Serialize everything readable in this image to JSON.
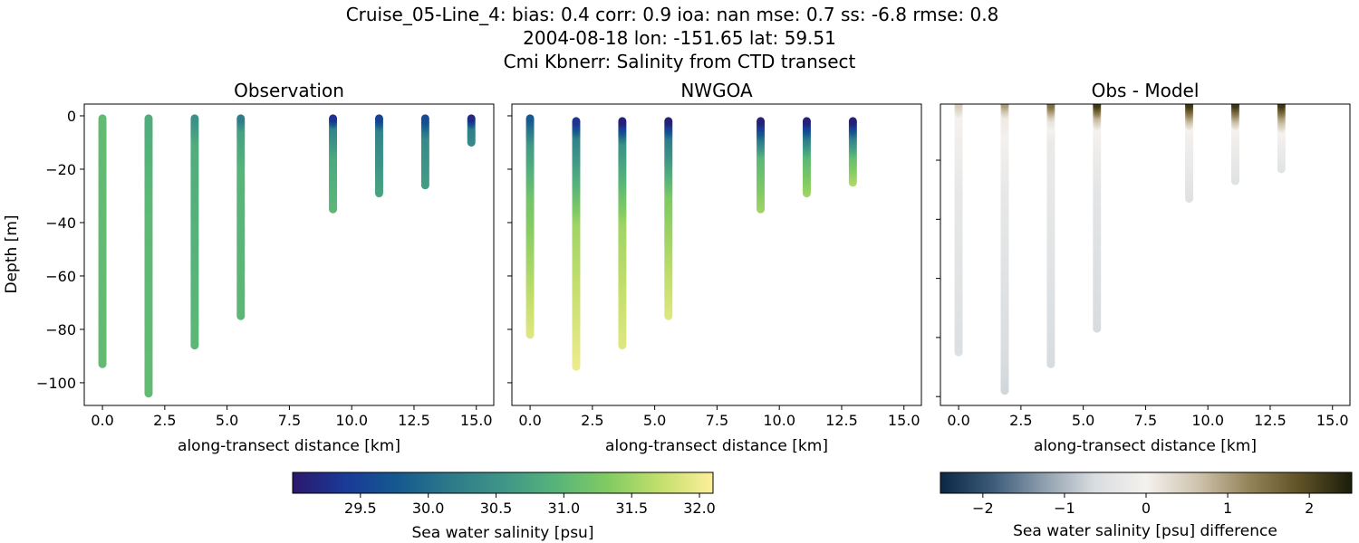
{
  "title_lines": [
    "Cruise_05-Line_4: bias: 0.4  corr: 0.9  ioa: nan  mse: 0.7  ss: -6.8  rmse: 0.8",
    "2004-08-18 lon: -151.65 lat: 59.51",
    "Cmi Kbnerr: Salinity from CTD transect"
  ],
  "chart_data": [
    {
      "type": "scatter",
      "title": "Observation",
      "xlabel": "along-transect distance [km]",
      "ylabel": "Depth [m]",
      "xlim": [
        -0.73,
        15.7
      ],
      "ylim": [
        -108.5,
        4.4
      ],
      "xticks": [
        "0.0",
        "2.5",
        "5.0",
        "7.5",
        "10.0",
        "12.5",
        "15.0"
      ],
      "yticks": [
        "0",
        "−20",
        "−40",
        "−60",
        "−80",
        "−100"
      ],
      "colormap": "haline",
      "casts": [
        {
          "x": 0.0,
          "profile": [
            [
              -1,
              31.05
            ],
            [
              -93,
              31.05
            ]
          ]
        },
        {
          "x": 1.85,
          "profile": [
            [
              -1,
              30.85
            ],
            [
              -30,
              31.0
            ],
            [
              -104,
              31.05
            ]
          ]
        },
        {
          "x": 3.7,
          "profile": [
            [
              -1,
              30.5
            ],
            [
              -10,
              30.85
            ],
            [
              -86,
              31.0
            ]
          ]
        },
        {
          "x": 5.55,
          "profile": [
            [
              -1,
              30.2
            ],
            [
              -5,
              30.7
            ],
            [
              -20,
              30.95
            ],
            [
              -75,
              31.0
            ]
          ]
        },
        {
          "x": 9.25,
          "profile": [
            [
              -1,
              29.3
            ],
            [
              -4,
              30.3
            ],
            [
              -15,
              30.8
            ],
            [
              -35,
              31.0
            ]
          ]
        },
        {
          "x": 11.1,
          "profile": [
            [
              -1,
              29.5
            ],
            [
              -5,
              30.3
            ],
            [
              -29,
              30.75
            ]
          ]
        },
        {
          "x": 12.95,
          "profile": [
            [
              -1,
              29.6
            ],
            [
              -8,
              30.4
            ],
            [
              -26,
              30.65
            ]
          ]
        },
        {
          "x": 14.8,
          "profile": [
            [
              -1,
              29.2
            ],
            [
              -4,
              30.2
            ],
            [
              -10,
              30.4
            ]
          ]
        }
      ]
    },
    {
      "type": "scatter",
      "title": "NWGOA",
      "xlabel": "along-transect distance [km]",
      "xlim": [
        -0.73,
        15.7
      ],
      "ylim": [
        -108.5,
        4.4
      ],
      "xticks": [
        "0.0",
        "2.5",
        "5.0",
        "7.5",
        "10.0",
        "12.5",
        "15.0"
      ],
      "colormap": "haline",
      "casts": [
        {
          "x": 0.0,
          "profile": [
            [
              -1,
              29.8
            ],
            [
              -10,
              30.6
            ],
            [
              -30,
              31.2
            ],
            [
              -60,
              31.6
            ],
            [
              -82,
              31.9
            ]
          ]
        },
        {
          "x": 1.85,
          "profile": [
            [
              -2,
              29.3
            ],
            [
              -8,
              30.3
            ],
            [
              -40,
              31.5
            ],
            [
              -94,
              32.0
            ]
          ]
        },
        {
          "x": 3.7,
          "profile": [
            [
              -2,
              29.1
            ],
            [
              -10,
              30.5
            ],
            [
              -40,
              31.5
            ],
            [
              -86,
              31.9
            ]
          ]
        },
        {
          "x": 5.55,
          "profile": [
            [
              -2,
              29.1
            ],
            [
              -8,
              30.2
            ],
            [
              -30,
              31.3
            ],
            [
              -75,
              31.9
            ]
          ]
        },
        {
          "x": 9.25,
          "profile": [
            [
              -2,
              29.1
            ],
            [
              -8,
              30.1
            ],
            [
              -15,
              31.0
            ],
            [
              -35,
              31.5
            ]
          ]
        },
        {
          "x": 11.1,
          "profile": [
            [
              -2,
              29.1
            ],
            [
              -8,
              30.2
            ],
            [
              -15,
              31.0
            ],
            [
              -29,
              31.5
            ]
          ]
        },
        {
          "x": 12.95,
          "profile": [
            [
              -2,
              29.1
            ],
            [
              -8,
              30.3
            ],
            [
              -15,
              31.1
            ],
            [
              -25,
              31.6
            ]
          ]
        }
      ]
    },
    {
      "type": "scatter",
      "title": "Obs - Model",
      "xlabel": "along-transect distance [km]",
      "xlim": [
        -0.73,
        15.7
      ],
      "ylim": [
        -103,
        -1
      ],
      "xticks": [
        "0.0",
        "2.5",
        "5.0",
        "7.5",
        "10.0",
        "12.5",
        "15.0"
      ],
      "colormap": "diff",
      "casts": [
        {
          "x": 0.0,
          "profile": [
            [
              -1,
              0.5
            ],
            [
              -5,
              0.0
            ],
            [
              -30,
              -0.3
            ],
            [
              -85,
              -0.55
            ]
          ]
        },
        {
          "x": 1.85,
          "profile": [
            [
              -1,
              1.0
            ],
            [
              -5,
              0.1
            ],
            [
              -30,
              -0.3
            ],
            [
              -98,
              -0.7
            ]
          ]
        },
        {
          "x": 3.7,
          "profile": [
            [
              -1,
              1.5
            ],
            [
              -6,
              0.2
            ],
            [
              -12,
              -0.2
            ],
            [
              -89,
              -0.65
            ]
          ]
        },
        {
          "x": 5.55,
          "profile": [
            [
              -1,
              2.2
            ],
            [
              -5,
              0.8
            ],
            [
              -9,
              0.0
            ],
            [
              -30,
              -0.4
            ],
            [
              -77,
              -0.65
            ]
          ]
        },
        {
          "x": 9.25,
          "profile": [
            [
              -1,
              2.2
            ],
            [
              -5,
              1.0
            ],
            [
              -9,
              0.0
            ],
            [
              -33,
              -0.5
            ]
          ]
        },
        {
          "x": 11.1,
          "profile": [
            [
              -1,
              2.2
            ],
            [
              -5,
              1.0
            ],
            [
              -9,
              0.0
            ],
            [
              -27,
              -0.5
            ]
          ]
        },
        {
          "x": 12.95,
          "profile": [
            [
              -1,
              2.2
            ],
            [
              -5,
              1.0
            ],
            [
              -10,
              0.0
            ],
            [
              -23,
              -0.45
            ]
          ]
        }
      ]
    }
  ],
  "colorbars": [
    {
      "label": "Sea water salinity [psu]",
      "range": [
        29.0,
        32.1
      ],
      "ticks": [
        "29.5",
        "30.0",
        "30.5",
        "31.0",
        "31.5",
        "32.0"
      ],
      "tick_values": [
        29.5,
        30.0,
        30.5,
        31.0,
        31.5,
        32.0
      ],
      "colormap": "haline"
    },
    {
      "label": "Sea water salinity [psu] difference",
      "range": [
        -2.52,
        2.52
      ],
      "ticks": [
        "−2",
        "−1",
        "0",
        "1",
        "2"
      ],
      "tick_values": [
        -2,
        -1,
        0,
        1,
        2
      ],
      "colormap": "diff"
    }
  ],
  "colormaps": {
    "haline": [
      "#2a186c",
      "#1a3a98",
      "#14598f",
      "#2d7a8a",
      "#3e9587",
      "#56b47a",
      "#82cb62",
      "#c4df6c",
      "#fdef9a"
    ],
    "diff": [
      "#0b2846",
      "#3a5a78",
      "#8e9eae",
      "#d9dde0",
      "#f4f1ee",
      "#cfc4ae",
      "#94845a",
      "#5e5126",
      "#1b1d0b"
    ]
  }
}
